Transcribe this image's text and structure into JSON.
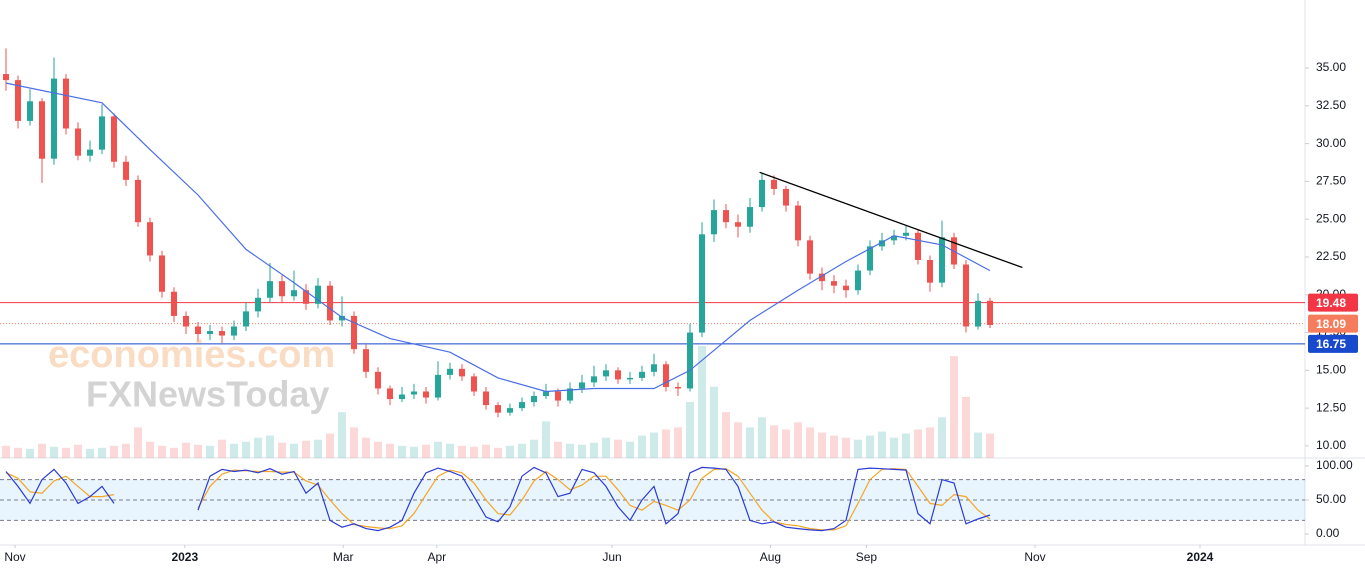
{
  "chart_data": {
    "type": "candlestick",
    "x": [
      1,
      2,
      3,
      4,
      5,
      6,
      7,
      8,
      9,
      10,
      11,
      12,
      13,
      14,
      15,
      16,
      17,
      18,
      19,
      20,
      21,
      22,
      23,
      24,
      25,
      26,
      27,
      28,
      29,
      30,
      31,
      32,
      33,
      34,
      35,
      36,
      37,
      38,
      39,
      40,
      41,
      42,
      43,
      44,
      45,
      46,
      47,
      48,
      49,
      50,
      51,
      52,
      53,
      54,
      55,
      56,
      57,
      58,
      59,
      60,
      61,
      62,
      63,
      64,
      65,
      66,
      67,
      68,
      69,
      70,
      71,
      72,
      73,
      74,
      75,
      76,
      77,
      78,
      79,
      80,
      81,
      82,
      83
    ],
    "open": [
      34.6,
      34.2,
      31.5,
      32.8,
      29.0,
      34.3,
      31.0,
      29.2,
      29.6,
      31.8,
      28.8,
      27.6,
      24.8,
      22.6,
      20.2,
      18.6,
      17.9,
      17.4,
      17.6,
      17.3,
      17.9,
      18.9,
      19.8,
      20.9,
      19.9,
      20.3,
      19.4,
      20.6,
      18.3,
      18.6,
      16.4,
      14.9,
      13.8,
      13.1,
      13.4,
      13.6,
      13.2,
      14.7,
      15.1,
      14.6,
      13.6,
      12.7,
      12.2,
      12.5,
      12.9,
      13.3,
      13.6,
      13.0,
      13.8,
      14.2,
      14.6,
      15.0,
      14.4,
      14.5,
      14.9,
      15.4,
      13.9,
      13.8,
      17.5,
      24.0,
      25.6,
      24.8,
      24.5,
      25.8,
      27.6,
      27.0,
      25.9,
      23.6,
      21.4,
      20.9,
      20.6,
      20.3,
      21.6,
      23.2,
      23.6,
      23.9,
      24.1,
      22.3,
      20.8,
      23.8,
      22.0,
      17.9,
      19.6
    ],
    "high": [
      36.3,
      34.5,
      33.6,
      33.0,
      35.7,
      34.6,
      31.4,
      30.2,
      32.6,
      32.0,
      29.2,
      27.9,
      25.1,
      22.9,
      20.5,
      18.9,
      18.2,
      18.0,
      17.9,
      18.3,
      19.5,
      20.4,
      22.1,
      21.3,
      21.6,
      20.7,
      21.1,
      20.9,
      19.9,
      18.9,
      16.7,
      15.2,
      14.0,
      13.9,
      14.1,
      13.9,
      15.6,
      15.5,
      15.4,
      14.8,
      13.9,
      12.9,
      12.8,
      13.2,
      13.6,
      14.1,
      13.8,
      14.2,
      14.7,
      15.3,
      15.4,
      15.2,
      14.9,
      15.3,
      16.1,
      15.6,
      14.2,
      18.1,
      24.8,
      26.3,
      26.0,
      25.3,
      26.4,
      28.1,
      27.9,
      27.2,
      26.2,
      23.9,
      21.8,
      21.3,
      21.0,
      22.0,
      23.6,
      24.1,
      24.3,
      24.6,
      24.3,
      22.6,
      24.9,
      24.1,
      22.3,
      20.1,
      19.8
    ],
    "low": [
      33.5,
      31.0,
      31.2,
      27.4,
      28.6,
      30.6,
      28.9,
      28.8,
      29.3,
      28.4,
      27.2,
      24.5,
      22.2,
      19.8,
      18.2,
      17.4,
      16.9,
      17.0,
      16.8,
      17.0,
      17.6,
      18.5,
      19.5,
      19.5,
      19.6,
      19.0,
      19.1,
      18.0,
      17.9,
      16.1,
      14.5,
      13.4,
      12.7,
      12.9,
      13.1,
      12.8,
      13.0,
      14.4,
      14.3,
      13.3,
      12.4,
      11.9,
      12.0,
      12.3,
      12.6,
      13.1,
      12.6,
      12.8,
      13.5,
      13.9,
      14.3,
      14.1,
      14.1,
      14.3,
      14.6,
      13.6,
      13.3,
      13.6,
      17.2,
      23.5,
      24.4,
      23.8,
      24.1,
      25.5,
      26.6,
      25.5,
      23.2,
      21.0,
      20.3,
      20.1,
      19.8,
      20.0,
      21.3,
      22.9,
      23.3,
      23.6,
      22.0,
      20.2,
      20.5,
      21.7,
      17.5,
      17.7,
      17.8
    ],
    "close": [
      34.2,
      31.5,
      32.8,
      29.0,
      34.3,
      31.0,
      29.2,
      29.6,
      31.8,
      28.8,
      27.6,
      24.8,
      22.6,
      20.2,
      18.6,
      17.9,
      17.4,
      17.6,
      17.3,
      17.9,
      18.9,
      19.8,
      20.9,
      19.9,
      20.3,
      19.4,
      20.6,
      18.3,
      18.6,
      16.4,
      14.9,
      13.8,
      13.1,
      13.4,
      13.6,
      13.2,
      14.7,
      15.1,
      14.6,
      13.6,
      12.7,
      12.2,
      12.5,
      12.9,
      13.3,
      13.6,
      13.0,
      13.8,
      14.2,
      14.6,
      15.0,
      14.4,
      14.5,
      14.9,
      15.4,
      13.9,
      13.8,
      17.5,
      24.0,
      25.6,
      24.8,
      24.5,
      25.8,
      27.6,
      27.0,
      25.9,
      23.6,
      21.4,
      20.9,
      20.6,
      20.3,
      21.6,
      23.2,
      23.6,
      23.9,
      24.1,
      22.3,
      20.8,
      23.8,
      22.0,
      17.9,
      19.6,
      18.0
    ],
    "volume": [
      12,
      10,
      9,
      14,
      11,
      10,
      13,
      9,
      10,
      12,
      14,
      30,
      16,
      12,
      10,
      15,
      13,
      12,
      18,
      14,
      16,
      20,
      22,
      15,
      14,
      17,
      18,
      24,
      45,
      30,
      20,
      16,
      14,
      12,
      11,
      13,
      16,
      14,
      12,
      11,
      13,
      10,
      12,
      14,
      18,
      36,
      16,
      14,
      13,
      15,
      20,
      18,
      16,
      22,
      25,
      28,
      30,
      55,
      110,
      70,
      45,
      35,
      30,
      40,
      32,
      28,
      35,
      30,
      25,
      22,
      20,
      18,
      22,
      26,
      20,
      24,
      28,
      30,
      40,
      100,
      60,
      25,
      24
    ],
    "up_color": "#26a69a",
    "down_color": "#ef5350",
    "ma": {
      "color": "#4a6fe3",
      "x": [
        1,
        9,
        13,
        17,
        21,
        25,
        29,
        33,
        38,
        42,
        46,
        50,
        55,
        58,
        63,
        67,
        71,
        75,
        79,
        83
      ],
      "values": [
        34.0,
        32.7,
        29.6,
        26.6,
        23.0,
        20.8,
        18.5,
        17.1,
        16.2,
        14.5,
        13.6,
        13.8,
        13.8,
        15.0,
        18.3,
        20.3,
        22.2,
        23.9,
        23.3,
        21.6
      ]
    },
    "trendline": {
      "color": "#000000",
      "x": [
        63.8,
        85.7
      ],
      "values": [
        28.1,
        21.8
      ]
    },
    "levels": [
      {
        "value": 19.48,
        "color": "#f23645",
        "style": "solid"
      },
      {
        "value": 18.09,
        "color": "#f57c5c",
        "style": "dotted"
      },
      {
        "value": 16.75,
        "color": "#1848cc",
        "style": "solid"
      }
    ],
    "xlim": [
      0.5,
      109.25
    ],
    "xticks": [
      {
        "value": 1.75,
        "label": "Nov"
      },
      {
        "value": 15.9,
        "label": "2023"
      },
      {
        "value": 29.1,
        "label": "Mar"
      },
      {
        "value": 36.9,
        "label": "Apr"
      },
      {
        "value": 51.5,
        "label": "Jun"
      },
      {
        "value": 64.7,
        "label": "Aug"
      },
      {
        "value": 72.7,
        "label": "Sep"
      },
      {
        "value": 86.75,
        "label": "Nov"
      },
      {
        "value": 100.5,
        "label": "2024"
      }
    ],
    "ylim": [
      9.2,
      39.5
    ],
    "yticks": [
      {
        "value": 10,
        "label": "10.00"
      },
      {
        "value": 12.5,
        "label": "12.50"
      },
      {
        "value": 15,
        "label": "15.00"
      },
      {
        "value": 17.5,
        "label": "17.50"
      },
      {
        "value": 20,
        "label": "20.00"
      },
      {
        "value": 22.5,
        "label": "22.50"
      },
      {
        "value": 25,
        "label": "25.00"
      },
      {
        "value": 27.5,
        "label": "27.50"
      },
      {
        "value": 30,
        "label": "30.00"
      },
      {
        "value": 32.5,
        "label": "32.50"
      },
      {
        "value": 35,
        "label": "35.00"
      }
    ],
    "watermarks": [
      "economies.com",
      "FXNewsToday"
    ],
    "stochastic": {
      "k": {
        "color": "#2b3bd6",
        "values": [
          92,
          70,
          45,
          80,
          95,
          75,
          45,
          55,
          70,
          45,
          null,
          null,
          null,
          null,
          null,
          null,
          35,
          85,
          95,
          92,
          94,
          90,
          96,
          88,
          92,
          60,
          75,
          20,
          10,
          15,
          8,
          5,
          10,
          20,
          60,
          90,
          97,
          92,
          85,
          55,
          25,
          18,
          40,
          85,
          98,
          90,
          55,
          60,
          95,
          90,
          70,
          40,
          20,
          50,
          70,
          15,
          30,
          90,
          98,
          97,
          95,
          70,
          20,
          15,
          18,
          10,
          8,
          6,
          5,
          8,
          20,
          95,
          97,
          96,
          95,
          94,
          30,
          15,
          80,
          75,
          15,
          22,
          28
        ]
      },
      "d": {
        "color": "#f5a623",
        "values": [
          90,
          82,
          62,
          60,
          78,
          85,
          70,
          55,
          55,
          58,
          null,
          null,
          null,
          null,
          null,
          null,
          38,
          70,
          88,
          94,
          93,
          92,
          92,
          91,
          91,
          78,
          72,
          50,
          30,
          14,
          11,
          9,
          8,
          12,
          30,
          58,
          85,
          94,
          90,
          75,
          50,
          30,
          28,
          50,
          78,
          92,
          80,
          65,
          72,
          85,
          85,
          65,
          42,
          35,
          48,
          42,
          35,
          50,
          82,
          95,
          96,
          85,
          60,
          35,
          18,
          14,
          12,
          8,
          6,
          6,
          12,
          45,
          80,
          95,
          96,
          95,
          70,
          45,
          42,
          58,
          55,
          35,
          22
        ]
      },
      "ylim": [
        -16.2,
        111.8
      ],
      "yticks": [
        {
          "value": 0,
          "label": "0.00"
        },
        {
          "value": 50,
          "label": "50.00"
        },
        {
          "value": 100,
          "label": "100.00"
        }
      ],
      "bands": [
        20,
        50,
        80
      ]
    }
  }
}
